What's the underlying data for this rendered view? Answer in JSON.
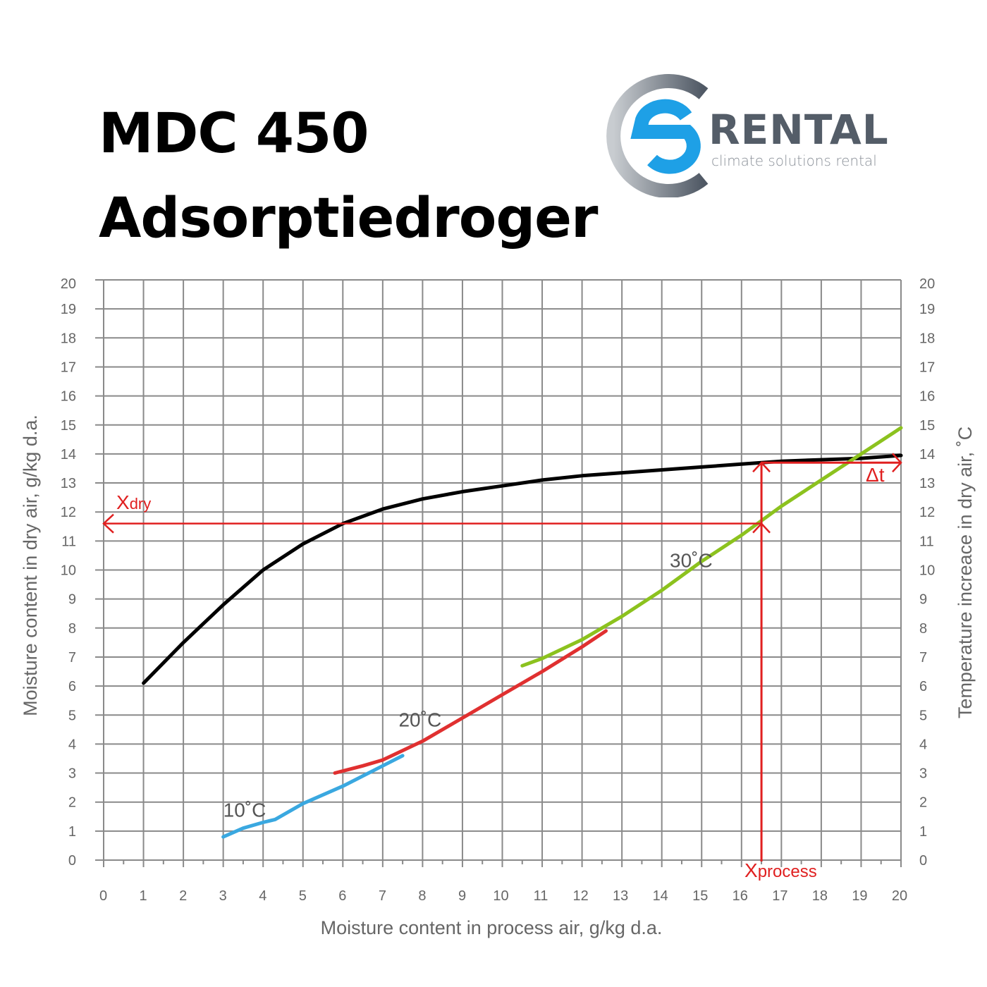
{
  "header": {
    "title_line1": "MDC 450",
    "title_line2": "Adsorptiedroger"
  },
  "logo": {
    "word": "RENTAL",
    "tagline": "climate solutions rental",
    "colors": {
      "ring": "#5a6370",
      "s": "#1ea0e6"
    }
  },
  "chart_data": {
    "type": "line",
    "title": "",
    "xlabel": "Moisture content in process air, g/kg d.a.",
    "ylabel": "Moisture content in dry air, g/kg d.a.",
    "y2label": "Temperature increace in dry air, ˚C",
    "xlim": [
      0,
      20
    ],
    "ylim": [
      0,
      20
    ],
    "y2lim": [
      0,
      20
    ],
    "xticks": [
      "0",
      "1",
      "2",
      "3",
      "4",
      "5",
      "6",
      "7",
      "8",
      "9",
      "10",
      "11",
      "12",
      "13",
      "14",
      "15",
      "16",
      "17",
      "18",
      "19",
      "20"
    ],
    "yticks": [
      "0",
      "1",
      "2",
      "3",
      "4",
      "5",
      "6",
      "7",
      "8",
      "9",
      "10",
      "11",
      "12",
      "13",
      "14",
      "15",
      "16",
      "17",
      "18",
      "19",
      "20"
    ],
    "grid": true,
    "series": [
      {
        "axis": "left",
        "color": "#000000",
        "points": [
          [
            1,
            6.1
          ],
          [
            2,
            7.5
          ],
          [
            3,
            8.8
          ],
          [
            4,
            10
          ],
          [
            5,
            10.9
          ],
          [
            6,
            11.6
          ],
          [
            7,
            12.1
          ],
          [
            8,
            12.45
          ],
          [
            9,
            12.7
          ],
          [
            10,
            12.9
          ],
          [
            11,
            13.1
          ],
          [
            12,
            13.25
          ],
          [
            13,
            13.35
          ],
          [
            14,
            13.45
          ],
          [
            15,
            13.55
          ],
          [
            16,
            13.65
          ],
          [
            17,
            13.75
          ],
          [
            18,
            13.8
          ],
          [
            19,
            13.85
          ],
          [
            20,
            13.95
          ]
        ]
      },
      {
        "axis": "right",
        "name": "10˚C",
        "color": "#3aa8e0",
        "points": [
          [
            3,
            0.8
          ],
          [
            3.5,
            1.1
          ],
          [
            4,
            1.3
          ],
          [
            4.3,
            1.4
          ],
          [
            5,
            1.95
          ],
          [
            6,
            2.55
          ],
          [
            7,
            3.25
          ],
          [
            7.5,
            3.6
          ]
        ]
      },
      {
        "axis": "right",
        "name": "20˚C",
        "color": "#e03030",
        "points": [
          [
            5.8,
            3.0
          ],
          [
            6.5,
            3.25
          ],
          [
            7,
            3.45
          ],
          [
            8,
            4.1
          ],
          [
            9,
            4.9
          ],
          [
            10,
            5.7
          ],
          [
            11,
            6.5
          ],
          [
            12,
            7.35
          ],
          [
            12.6,
            7.9
          ]
        ]
      },
      {
        "axis": "right",
        "name": "30˚C",
        "color": "#8cc21e",
        "points": [
          [
            10.5,
            6.7
          ],
          [
            11,
            6.95
          ],
          [
            12,
            7.6
          ],
          [
            13,
            8.4
          ],
          [
            14,
            9.3
          ],
          [
            15,
            10.3
          ],
          [
            16,
            11.2
          ],
          [
            17,
            12.2
          ],
          [
            18,
            13.1
          ],
          [
            19,
            14
          ],
          [
            20,
            14.9
          ]
        ]
      }
    ],
    "series_labels": [
      {
        "text": "10˚C",
        "x": 3.0,
        "y": 1.5
      },
      {
        "text": "20˚C",
        "x": 7.4,
        "y": 4.6
      },
      {
        "text": "30˚C",
        "x": 14.2,
        "y": 10.1
      }
    ],
    "annotations": {
      "color": "#e02020",
      "x_process": 16.5,
      "x_dry": 11.6,
      "dt_level": 13.7,
      "labels": {
        "xdry_main": "X",
        "xdry_sub": "dry",
        "xprocess_main": "X",
        "xprocess_sub": "process",
        "dt": "Δt"
      }
    }
  }
}
